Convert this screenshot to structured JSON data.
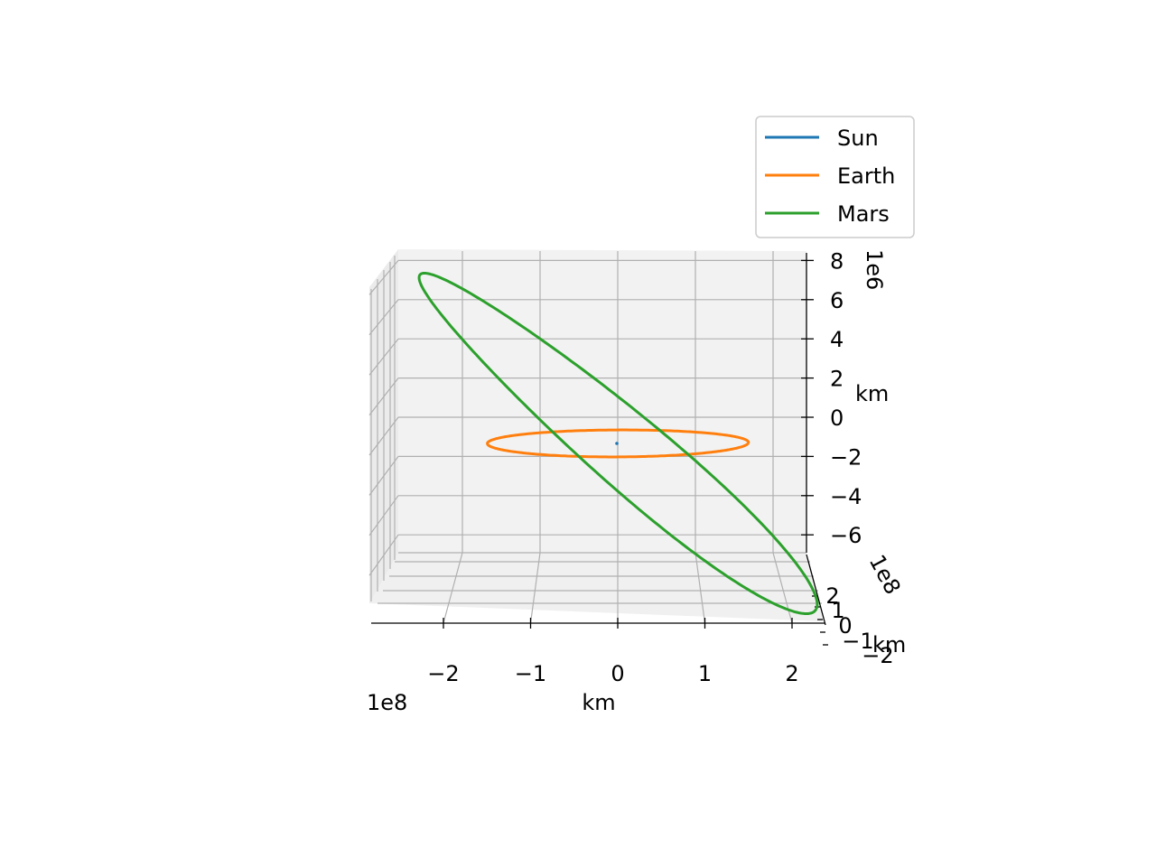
{
  "chart_data": {
    "type": "line",
    "projection": "3d",
    "title": "",
    "xlabel": "km",
    "ylabel": "km",
    "zlabel": "km",
    "x_ticks": [
      "−2",
      "−1",
      "0",
      "1",
      "2"
    ],
    "x_tick_values": [
      -2,
      -1,
      0,
      1,
      2
    ],
    "x_offset_label": "1e8",
    "y_ticks": [
      "−2",
      "−1",
      "0",
      "1",
      "2"
    ],
    "y_tick_values": [
      -2,
      -1,
      0,
      1,
      2
    ],
    "y_offset_label": "1e8",
    "z_ticks": [
      "−6",
      "−4",
      "−2",
      "0",
      "2",
      "4",
      "6",
      "8"
    ],
    "z_tick_values": [
      -6,
      -4,
      -2,
      0,
      2,
      4,
      6,
      8
    ],
    "z_offset_label": "1e6",
    "grid": true,
    "legend_position": "upper right",
    "series": [
      {
        "name": "Sun",
        "color": "#1f77b4",
        "semi_major_axis": 0,
        "z_tilt_amplitude": 0
      },
      {
        "name": "Earth",
        "color": "#ff7f0e",
        "semi_major_axis": 149600000,
        "z_tilt_amplitude": 0
      },
      {
        "name": "Mars",
        "color": "#2ca02c",
        "semi_major_axis": 227900000,
        "z_tilt_amplitude": 8500000
      }
    ]
  }
}
